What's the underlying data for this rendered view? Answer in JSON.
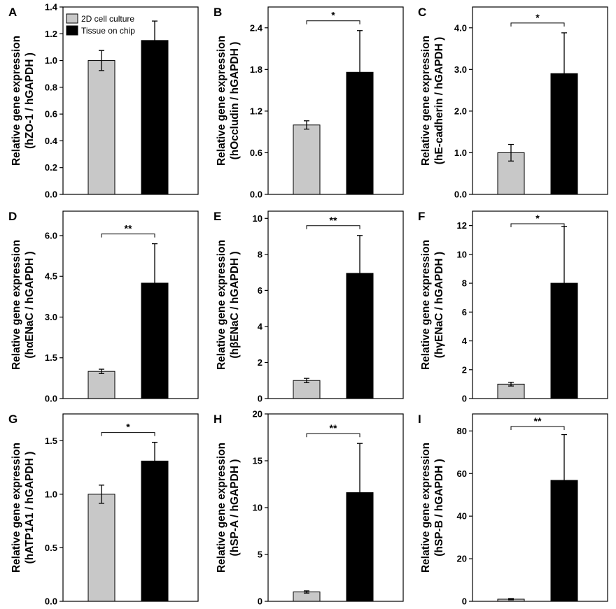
{
  "legend": [
    {
      "label": "2D cell culture",
      "color": "#c8c8c8"
    },
    {
      "label": "Tissue on chip",
      "color": "#000000"
    }
  ],
  "chart_data": [
    {
      "panel": "A",
      "type": "bar",
      "ylabel_line1": "Relative gene expression",
      "ylabel_line2": "(hZO-1 / hGAPDH )",
      "categories": [
        "2D cell culture",
        "Tissue on chip"
      ],
      "values": [
        1.0,
        1.15
      ],
      "errors": [
        0.075,
        0.145
      ],
      "ylim": [
        0,
        1.4
      ],
      "yticks": [
        "0.0",
        "0.2",
        "0.4",
        "0.6",
        "0.8",
        "1.0",
        "1.2",
        "1.4"
      ],
      "significance": "",
      "show_legend": true
    },
    {
      "panel": "B",
      "type": "bar",
      "ylabel_line1": "Relative gene expression",
      "ylabel_line2": "(hOccludin / hGAPDH )",
      "categories": [
        "2D cell culture",
        "Tissue on chip"
      ],
      "values": [
        1.0,
        1.76
      ],
      "errors": [
        0.06,
        0.6
      ],
      "ylim": [
        0,
        2.7
      ],
      "yticks": [
        "0.0",
        "0.6",
        "1.2",
        "1.8",
        "2.4"
      ],
      "significance": "*",
      "show_legend": false
    },
    {
      "panel": "C",
      "type": "bar",
      "ylabel_line1": "Relative gene expression",
      "ylabel_line2": "(hE-cadherin / hGAPDH )",
      "categories": [
        "2D cell culture",
        "Tissue on chip"
      ],
      "values": [
        1.0,
        2.9
      ],
      "errors": [
        0.2,
        0.98
      ],
      "ylim": [
        0,
        4.5
      ],
      "yticks": [
        "0.0",
        "1.0",
        "2.0",
        "3.0",
        "4.0"
      ],
      "significance": "*",
      "show_legend": false
    },
    {
      "panel": "D",
      "type": "bar",
      "ylabel_line1": "Relative gene expression",
      "ylabel_line2": "(hαENaC / hGAPDH )",
      "categories": [
        "2D cell culture",
        "Tissue on chip"
      ],
      "values": [
        1.0,
        4.25
      ],
      "errors": [
        0.08,
        1.45
      ],
      "ylim": [
        0,
        6.9
      ],
      "yticks": [
        "0.0",
        "1.5",
        "3.0",
        "4.5",
        "6.0"
      ],
      "significance": "**",
      "show_legend": false
    },
    {
      "panel": "E",
      "type": "bar",
      "ylabel_line1": "Relative gene expression",
      "ylabel_line2": "(hβENaC / hGAPDH )",
      "categories": [
        "2D cell culture",
        "Tissue on chip"
      ],
      "values": [
        1.0,
        6.95
      ],
      "errors": [
        0.12,
        2.1
      ],
      "ylim": [
        0,
        10.4
      ],
      "yticks": [
        "0",
        "2",
        "4",
        "6",
        "8",
        "10"
      ],
      "significance": "**",
      "show_legend": false
    },
    {
      "panel": "F",
      "type": "bar",
      "ylabel_line1": "Relative gene expression",
      "ylabel_line2": "(hγENaC / hGAPDH )",
      "categories": [
        "2D cell culture",
        "Tissue on chip"
      ],
      "values": [
        1.0,
        8.0
      ],
      "errors": [
        0.13,
        3.95
      ],
      "ylim": [
        0,
        13.0
      ],
      "yticks": [
        "0",
        "2",
        "4",
        "6",
        "8",
        "10",
        "12"
      ],
      "significance": "*",
      "show_legend": false
    },
    {
      "panel": "G",
      "type": "bar",
      "ylabel_line1": "Relative gene expression",
      "ylabel_line2": "(hATP1A1 / hGAPDH )",
      "categories": [
        "2D cell culture",
        "Tissue on chip"
      ],
      "values": [
        1.0,
        1.31
      ],
      "errors": [
        0.085,
        0.175
      ],
      "ylim": [
        0,
        1.75
      ],
      "yticks": [
        "0.0",
        "0.5",
        "1.0",
        "1.5"
      ],
      "significance": "*",
      "show_legend": false
    },
    {
      "panel": "H",
      "type": "bar",
      "ylabel_line1": "Relative gene expression",
      "ylabel_line2": "(hSP-A / hGAPDH )",
      "categories": [
        "2D cell culture",
        "Tissue on chip"
      ],
      "values": [
        1.0,
        11.6
      ],
      "errors": [
        0.12,
        5.25
      ],
      "ylim": [
        0,
        20
      ],
      "yticks": [
        "0",
        "5",
        "10",
        "15",
        "20"
      ],
      "significance": "**",
      "show_legend": false
    },
    {
      "panel": "I",
      "type": "bar",
      "ylabel_line1": "Relative gene expression",
      "ylabel_line2": "(hSP-B / hGAPDH )",
      "categories": [
        "2D cell culture",
        "Tissue on chip"
      ],
      "values": [
        1.0,
        56.8
      ],
      "errors": [
        0.3,
        21.5
      ],
      "ylim": [
        0,
        88
      ],
      "yticks": [
        "0",
        "20",
        "40",
        "60",
        "80"
      ],
      "significance": "**",
      "show_legend": false
    }
  ]
}
